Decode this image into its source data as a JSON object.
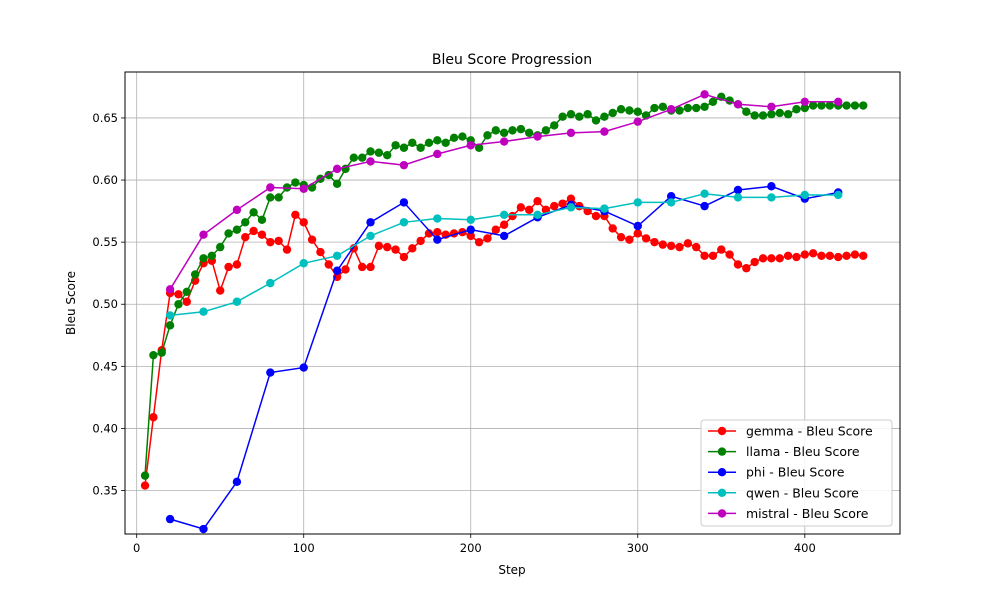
{
  "chart_data": {
    "type": "line",
    "title": "Bleu Score Progression",
    "xlabel": "Step",
    "ylabel": "Bleu Score",
    "xlim": [
      -7,
      457
    ],
    "ylim": [
      0.315,
      0.687
    ],
    "xticks": [
      0,
      100,
      200,
      300,
      400
    ],
    "yticks": [
      0.35,
      0.4,
      0.45,
      0.5,
      0.55,
      0.6,
      0.65
    ],
    "ytick_labels": [
      "0.35",
      "0.40",
      "0.45",
      "0.50",
      "0.55",
      "0.60",
      "0.65"
    ],
    "grid": true,
    "legend_position": "lower-right",
    "series": [
      {
        "name": "gemma - Bleu Score",
        "color": "#ff0000",
        "x": [
          5,
          10,
          15,
          20,
          25,
          30,
          35,
          40,
          45,
          50,
          55,
          60,
          65,
          70,
          75,
          80,
          85,
          90,
          95,
          100,
          105,
          110,
          115,
          120,
          125,
          130,
          135,
          140,
          145,
          150,
          155,
          160,
          165,
          170,
          175,
          180,
          185,
          190,
          195,
          200,
          205,
          210,
          215,
          220,
          225,
          230,
          235,
          240,
          245,
          250,
          255,
          260,
          265,
          270,
          275,
          280,
          285,
          290,
          295,
          300,
          305,
          310,
          315,
          320,
          325,
          330,
          335,
          340,
          345,
          350,
          355,
          360,
          365,
          370,
          375,
          380,
          385,
          390,
          395,
          400,
          405,
          410,
          415,
          420,
          425,
          430,
          435
        ],
        "y": [
          0.354,
          0.409,
          0.463,
          0.509,
          0.508,
          0.502,
          0.519,
          0.533,
          0.535,
          0.511,
          0.53,
          0.532,
          0.554,
          0.559,
          0.556,
          0.55,
          0.551,
          0.544,
          0.572,
          0.566,
          0.552,
          0.542,
          0.532,
          0.522,
          0.528,
          0.545,
          0.53,
          0.53,
          0.547,
          0.546,
          0.544,
          0.538,
          0.545,
          0.551,
          0.557,
          0.558,
          0.556,
          0.557,
          0.558,
          0.555,
          0.55,
          0.553,
          0.56,
          0.564,
          0.571,
          0.578,
          0.576,
          0.583,
          0.576,
          0.579,
          0.581,
          0.585,
          0.579,
          0.575,
          0.571,
          0.571,
          0.561,
          0.554,
          0.552,
          0.557,
          0.553,
          0.55,
          0.548,
          0.547,
          0.546,
          0.549,
          0.546,
          0.539,
          0.539,
          0.544,
          0.54,
          0.532,
          0.529,
          0.534,
          0.537,
          0.537,
          0.537,
          0.539,
          0.538,
          0.54,
          0.541,
          0.539,
          0.539,
          0.538,
          0.539,
          0.54,
          0.539
        ]
      },
      {
        "name": "llama - Bleu Score",
        "color": "#008000",
        "x": [
          5,
          10,
          15,
          20,
          25,
          30,
          35,
          40,
          45,
          50,
          55,
          60,
          65,
          70,
          75,
          80,
          85,
          90,
          95,
          100,
          105,
          110,
          115,
          120,
          125,
          130,
          135,
          140,
          145,
          150,
          155,
          160,
          165,
          170,
          175,
          180,
          185,
          190,
          195,
          200,
          205,
          210,
          215,
          220,
          225,
          230,
          235,
          240,
          245,
          250,
          255,
          260,
          265,
          270,
          275,
          280,
          285,
          290,
          295,
          300,
          305,
          310,
          315,
          320,
          325,
          330,
          335,
          340,
          345,
          350,
          355,
          360,
          365,
          370,
          375,
          380,
          385,
          390,
          395,
          400,
          405,
          410,
          415,
          420,
          425,
          430,
          435
        ],
        "y": [
          0.362,
          0.459,
          0.461,
          0.483,
          0.5,
          0.51,
          0.524,
          0.537,
          0.539,
          0.546,
          0.557,
          0.56,
          0.566,
          0.574,
          0.568,
          0.586,
          0.586,
          0.594,
          0.598,
          0.596,
          0.594,
          0.601,
          0.604,
          0.597,
          0.609,
          0.618,
          0.618,
          0.623,
          0.622,
          0.62,
          0.628,
          0.626,
          0.63,
          0.626,
          0.63,
          0.632,
          0.63,
          0.634,
          0.635,
          0.632,
          0.626,
          0.636,
          0.64,
          0.638,
          0.64,
          0.641,
          0.638,
          0.636,
          0.64,
          0.644,
          0.651,
          0.653,
          0.651,
          0.653,
          0.648,
          0.651,
          0.654,
          0.657,
          0.656,
          0.655,
          0.652,
          0.658,
          0.659,
          0.656,
          0.656,
          0.658,
          0.658,
          0.659,
          0.663,
          0.667,
          0.664,
          0.661,
          0.655,
          0.652,
          0.652,
          0.653,
          0.654,
          0.653,
          0.657,
          0.658,
          0.66,
          0.66,
          0.66,
          0.66,
          0.66,
          0.66,
          0.66
        ]
      },
      {
        "name": "phi - Bleu Score",
        "color": "#0000ff",
        "x": [
          20,
          40,
          60,
          80,
          100,
          120,
          140,
          160,
          180,
          200,
          220,
          240,
          260,
          280,
          300,
          320,
          340,
          360,
          380,
          400,
          420
        ],
        "y": [
          0.327,
          0.319,
          0.357,
          0.445,
          0.449,
          0.527,
          0.566,
          0.582,
          0.552,
          0.56,
          0.555,
          0.57,
          0.58,
          0.575,
          0.563,
          0.587,
          0.579,
          0.592,
          0.595,
          0.585,
          0.59
        ]
      },
      {
        "name": "qwen - Bleu Score",
        "color": "#00bfbf",
        "x": [
          20,
          40,
          60,
          80,
          100,
          120,
          140,
          160,
          180,
          200,
          220,
          240,
          260,
          280,
          300,
          320,
          340,
          360,
          380,
          400,
          420
        ],
        "y": [
          0.491,
          0.494,
          0.502,
          0.517,
          0.533,
          0.539,
          0.555,
          0.566,
          0.569,
          0.568,
          0.572,
          0.572,
          0.578,
          0.577,
          0.582,
          0.582,
          0.589,
          0.586,
          0.586,
          0.588,
          0.588
        ]
      },
      {
        "name": "mistral - Bleu Score",
        "color": "#bf00bf",
        "x": [
          20,
          40,
          60,
          80,
          100,
          120,
          140,
          160,
          180,
          200,
          220,
          240,
          260,
          280,
          300,
          320,
          340,
          360,
          380,
          400,
          420
        ],
        "y": [
          0.512,
          0.556,
          0.576,
          0.594,
          0.593,
          0.609,
          0.615,
          0.612,
          0.621,
          0.628,
          0.631,
          0.635,
          0.638,
          0.639,
          0.647,
          0.657,
          0.669,
          0.661,
          0.659,
          0.663,
          0.663
        ]
      }
    ]
  }
}
